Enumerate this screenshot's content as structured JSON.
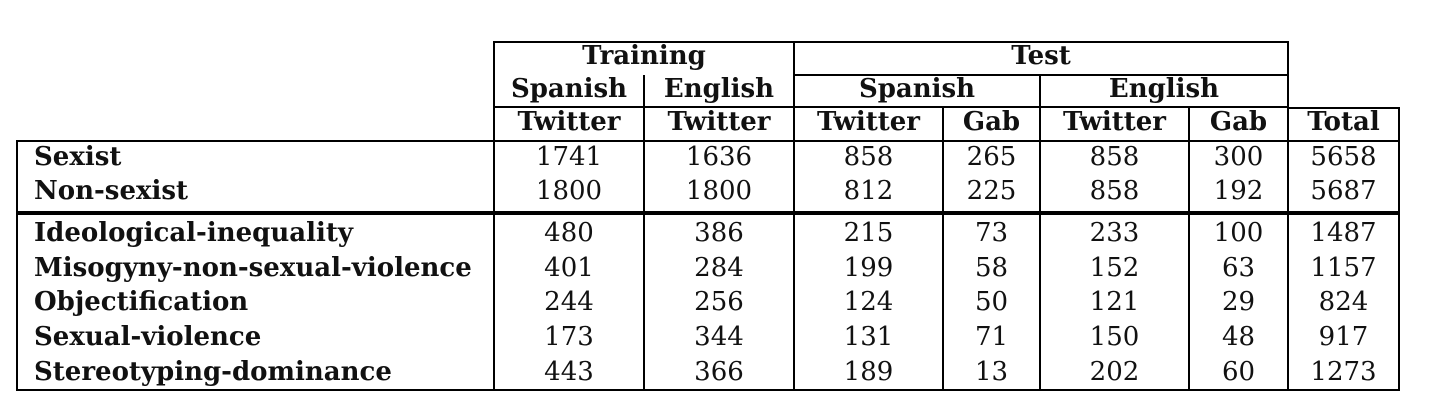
{
  "header": {
    "groups": [
      "Training",
      "Test"
    ],
    "languages": [
      "Spanish",
      "English",
      "Spanish",
      "English"
    ],
    "sources": [
      "Twitter",
      "Twitter",
      "Twitter",
      "Gab",
      "Twitter",
      "Gab"
    ],
    "total": "Total"
  },
  "rows": [
    {
      "label": "Sexist",
      "values": [
        "1741",
        "1636",
        "858",
        "265",
        "858",
        "300",
        "5658"
      ]
    },
    {
      "label": "Non-sexist",
      "values": [
        "1800",
        "1800",
        "812",
        "225",
        "858",
        "192",
        "5687"
      ]
    },
    {
      "label": "Ideological-inequality",
      "values": [
        "480",
        "386",
        "215",
        "73",
        "233",
        "100",
        "1487"
      ]
    },
    {
      "label": "Misogyny-non-sexual-violence",
      "values": [
        "401",
        "284",
        "199",
        "58",
        "152",
        "63",
        "1157"
      ]
    },
    {
      "label": "Objectification",
      "values": [
        "244",
        "256",
        "124",
        "50",
        "121",
        "29",
        "824"
      ]
    },
    {
      "label": "Sexual-violence",
      "values": [
        "173",
        "344",
        "131",
        "71",
        "150",
        "48",
        "917"
      ]
    },
    {
      "label": "Stereotyping-dominance",
      "values": [
        "443",
        "366",
        "189",
        "13",
        "202",
        "60",
        "1273"
      ]
    }
  ]
}
